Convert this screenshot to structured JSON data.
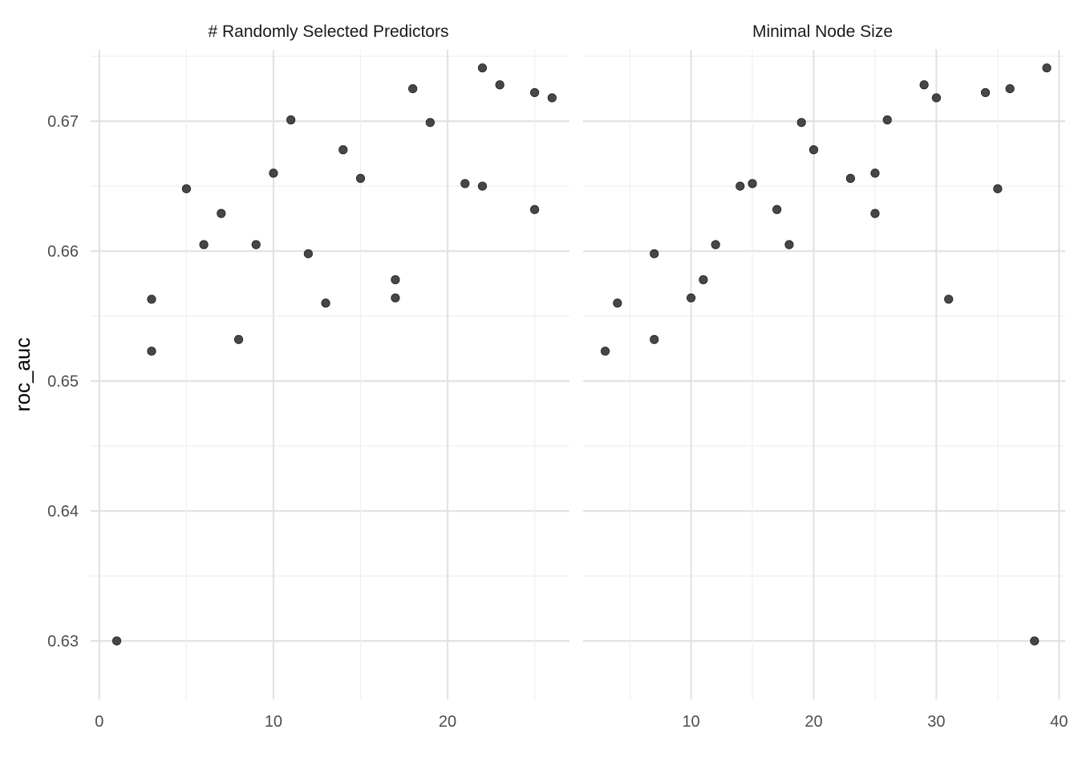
{
  "chart_data": {
    "type": "scatter",
    "ylabel": "roc_auc",
    "ylim": [
      0.6255,
      0.6755
    ],
    "y_ticks": [
      "0.63",
      "0.64",
      "0.65",
      "0.66",
      "0.67"
    ],
    "y_tick_values": [
      0.63,
      0.64,
      0.65,
      0.66,
      0.67
    ],
    "grid": true,
    "facets": [
      {
        "title": "# Randomly Selected Predictors",
        "xlim": [
          -0.5,
          27
        ],
        "x_ticks": [
          "0",
          "10",
          "20"
        ],
        "x_tick_values": [
          0,
          10,
          20
        ],
        "x_minor_values": [
          5,
          15,
          25
        ],
        "points": [
          {
            "x": 1,
            "y": 0.63
          },
          {
            "x": 3,
            "y": 0.6563
          },
          {
            "x": 3,
            "y": 0.6523
          },
          {
            "x": 5,
            "y": 0.6648
          },
          {
            "x": 6,
            "y": 0.6605
          },
          {
            "x": 7,
            "y": 0.6629
          },
          {
            "x": 8,
            "y": 0.6532
          },
          {
            "x": 9,
            "y": 0.6605
          },
          {
            "x": 10,
            "y": 0.666
          },
          {
            "x": 11,
            "y": 0.6701
          },
          {
            "x": 12,
            "y": 0.6598
          },
          {
            "x": 13,
            "y": 0.656
          },
          {
            "x": 14,
            "y": 0.6678
          },
          {
            "x": 15,
            "y": 0.6656
          },
          {
            "x": 17,
            "y": 0.6578
          },
          {
            "x": 17,
            "y": 0.6564
          },
          {
            "x": 18,
            "y": 0.6725
          },
          {
            "x": 19,
            "y": 0.6699
          },
          {
            "x": 21,
            "y": 0.6652
          },
          {
            "x": 22,
            "y": 0.6741
          },
          {
            "x": 22,
            "y": 0.665
          },
          {
            "x": 23,
            "y": 0.6728
          },
          {
            "x": 25,
            "y": 0.6722
          },
          {
            "x": 25,
            "y": 0.6632
          },
          {
            "x": 26,
            "y": 0.6718
          }
        ]
      },
      {
        "title": "Minimal Node Size",
        "xlim": [
          1.2,
          40.5
        ],
        "x_ticks": [
          "10",
          "20",
          "30",
          "40"
        ],
        "x_tick_values": [
          10,
          20,
          30,
          40
        ],
        "x_minor_values": [
          5,
          15,
          25,
          35
        ],
        "points": [
          {
            "x": 3,
            "y": 0.6523
          },
          {
            "x": 4,
            "y": 0.656
          },
          {
            "x": 7,
            "y": 0.6598
          },
          {
            "x": 7,
            "y": 0.6532
          },
          {
            "x": 10,
            "y": 0.6564
          },
          {
            "x": 11,
            "y": 0.6578
          },
          {
            "x": 12,
            "y": 0.6605
          },
          {
            "x": 14,
            "y": 0.665
          },
          {
            "x": 15,
            "y": 0.6652
          },
          {
            "x": 17,
            "y": 0.6632
          },
          {
            "x": 18,
            "y": 0.6605
          },
          {
            "x": 19,
            "y": 0.6699
          },
          {
            "x": 20,
            "y": 0.6678
          },
          {
            "x": 23,
            "y": 0.6656
          },
          {
            "x": 25,
            "y": 0.666
          },
          {
            "x": 25,
            "y": 0.6629
          },
          {
            "x": 26,
            "y": 0.6701
          },
          {
            "x": 29,
            "y": 0.6728
          },
          {
            "x": 30,
            "y": 0.6718
          },
          {
            "x": 31,
            "y": 0.6563
          },
          {
            "x": 34,
            "y": 0.6722
          },
          {
            "x": 35,
            "y": 0.6648
          },
          {
            "x": 36,
            "y": 0.6725
          },
          {
            "x": 38,
            "y": 0.63
          },
          {
            "x": 39,
            "y": 0.6741
          }
        ]
      }
    ]
  }
}
